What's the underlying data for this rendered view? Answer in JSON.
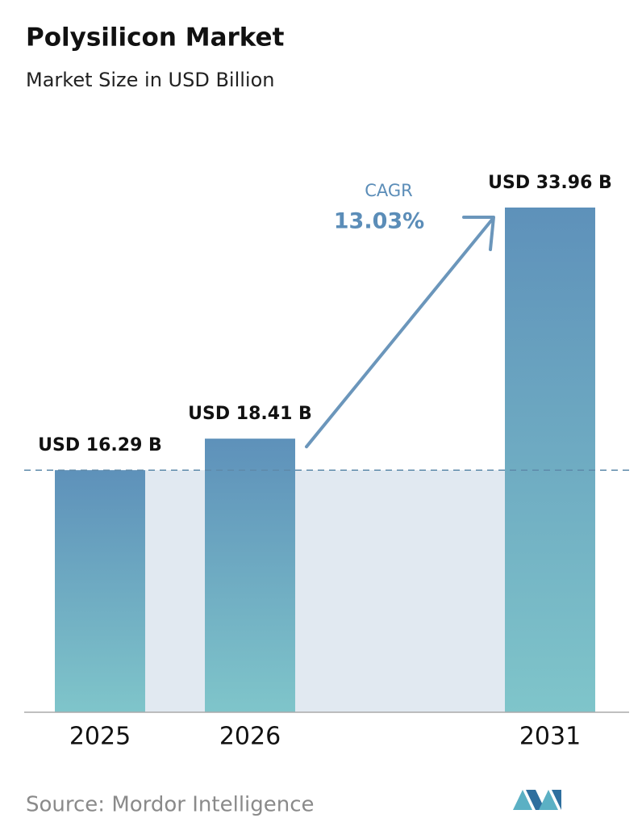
{
  "chart_data": {
    "type": "bar",
    "title": "Polysilicon Market",
    "subtitle": "Market Size in USD Billion",
    "categories": [
      "2025",
      "2026",
      "2031"
    ],
    "values": [
      16.29,
      18.41,
      33.96
    ],
    "value_labels": [
      "USD 16.29 B",
      "USD 18.41 B",
      "USD 33.96 B"
    ],
    "color": [
      "#5e91ba",
      "#7fc5ca"
    ],
    "annotations": {
      "cagr_label": "CAGR",
      "cagr_value": "13.03%"
    },
    "source": "Source:  Mordor Intelligence"
  }
}
